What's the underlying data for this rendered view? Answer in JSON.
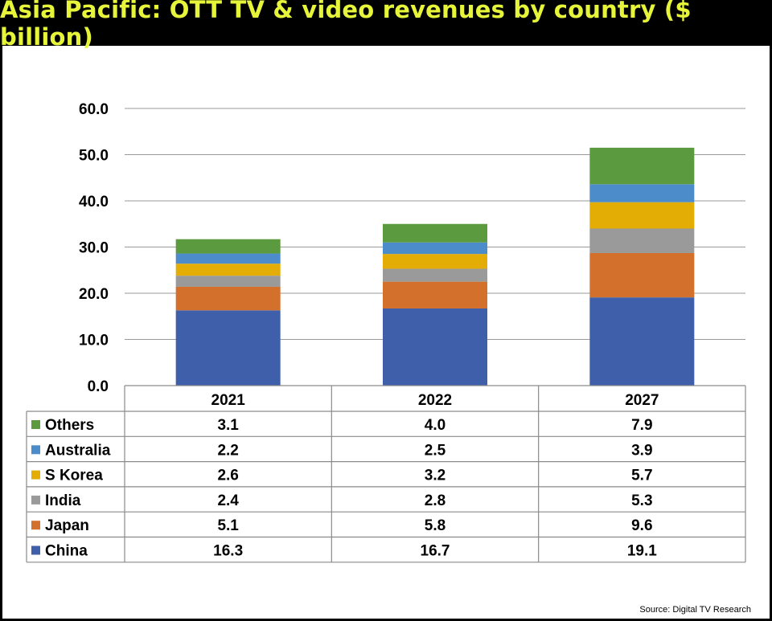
{
  "title": "Asia Pacific: OTT TV & video revenues by country ($ billion)",
  "source": "Source: Digital TV Research",
  "chart_data": {
    "type": "bar",
    "stacked": true,
    "title": "Asia Pacific: OTT TV & video revenues by country ($ billion)",
    "categories": [
      "2021",
      "2022",
      "2027"
    ],
    "ylim": [
      0,
      60
    ],
    "yticks": [
      "0.0",
      "10.0",
      "20.0",
      "30.0",
      "40.0",
      "50.0",
      "60.0"
    ],
    "grid": true,
    "legend": "data-table",
    "series": [
      {
        "name": "China",
        "color": "#3f5fab",
        "values": [
          16.3,
          16.7,
          19.1
        ]
      },
      {
        "name": "Japan",
        "color": "#d3702c",
        "values": [
          5.1,
          5.8,
          9.6
        ]
      },
      {
        "name": "India",
        "color": "#9a9a9a",
        "values": [
          2.4,
          2.8,
          5.3
        ]
      },
      {
        "name": "S Korea",
        "color": "#e3ad06",
        "values": [
          2.6,
          3.2,
          5.7
        ]
      },
      {
        "name": "Australia",
        "color": "#4d8ccb",
        "values": [
          2.2,
          2.5,
          3.9
        ]
      },
      {
        "name": "Others",
        "color": "#5b9a3e",
        "values": [
          3.1,
          4.0,
          7.9
        ]
      }
    ],
    "table_labels": [
      [
        "3.1",
        "4.0",
        "7.9"
      ],
      [
        "2.2",
        "2.5",
        "3.9"
      ],
      [
        "2.6",
        "3.2",
        "5.7"
      ],
      [
        "2.4",
        "2.8",
        "5.3"
      ],
      [
        "5.1",
        "5.8",
        "9.6"
      ],
      [
        "16.3",
        "16.7",
        "19.1"
      ]
    ]
  }
}
